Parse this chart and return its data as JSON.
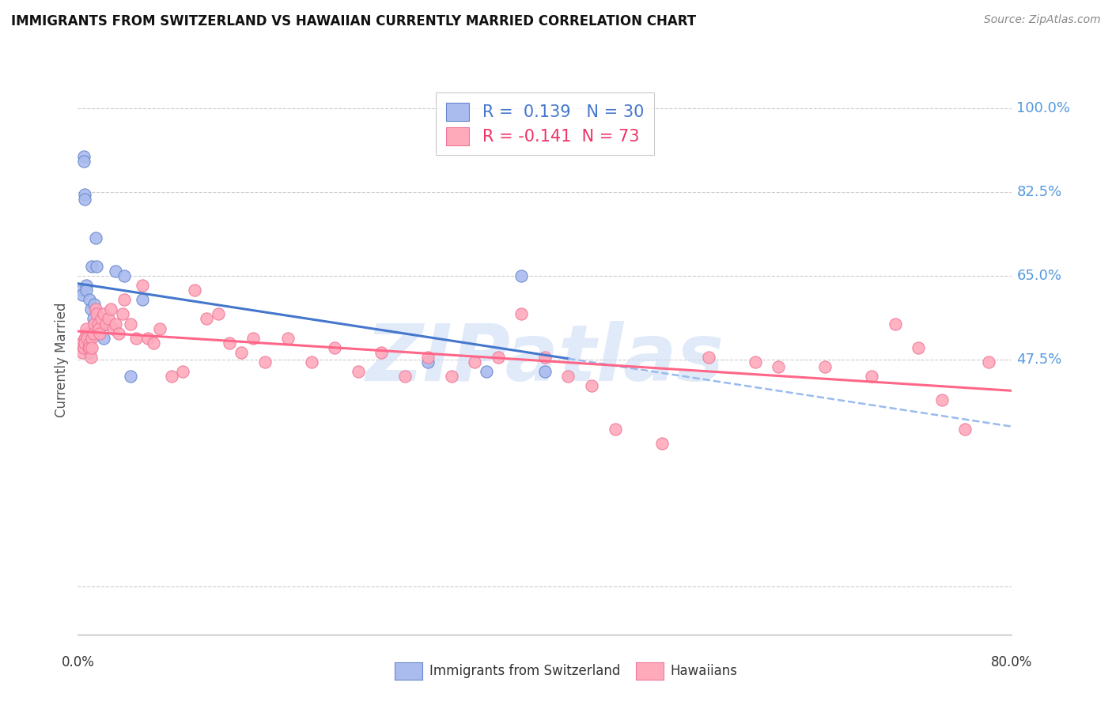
{
  "title": "IMMIGRANTS FROM SWITZERLAND VS HAWAIIAN CURRENTLY MARRIED CORRELATION CHART",
  "source": "Source: ZipAtlas.com",
  "ylabel": "Currently Married",
  "ymin": -0.1,
  "ymax": 1.05,
  "xmin": 0.0,
  "xmax": 0.8,
  "swiss_color": "#aabbee",
  "swiss_edge": "#6688cc",
  "hawaiian_color": "#ffaabb",
  "hawaiian_edge": "#ee7799",
  "trend_swiss_color": "#4477cc",
  "trend_swiss_dashed_color": "#99bbee",
  "trend_hawaiian_color": "#ff6688",
  "r_swiss": 0.139,
  "n_swiss": 30,
  "r_hawaiian": -0.141,
  "n_hawaiian": 73,
  "swiss_x": [
    0.003,
    0.004,
    0.005,
    0.005,
    0.006,
    0.006,
    0.007,
    0.007,
    0.008,
    0.009,
    0.01,
    0.01,
    0.011,
    0.012,
    0.013,
    0.014,
    0.015,
    0.016,
    0.018,
    0.02,
    0.022,
    0.025,
    0.032,
    0.04,
    0.045,
    0.055,
    0.3,
    0.35,
    0.38,
    0.4
  ],
  "swiss_y": [
    0.62,
    0.61,
    0.9,
    0.89,
    0.82,
    0.81,
    0.63,
    0.62,
    0.51,
    0.5,
    0.49,
    0.6,
    0.58,
    0.67,
    0.56,
    0.59,
    0.73,
    0.67,
    0.53,
    0.56,
    0.52,
    0.55,
    0.66,
    0.65,
    0.44,
    0.6,
    0.47,
    0.45,
    0.65,
    0.45
  ],
  "hawaiian_x": [
    0.002,
    0.003,
    0.004,
    0.005,
    0.006,
    0.006,
    0.007,
    0.007,
    0.008,
    0.009,
    0.01,
    0.01,
    0.011,
    0.012,
    0.012,
    0.013,
    0.014,
    0.015,
    0.016,
    0.017,
    0.018,
    0.019,
    0.02,
    0.022,
    0.024,
    0.026,
    0.028,
    0.03,
    0.032,
    0.035,
    0.038,
    0.04,
    0.045,
    0.05,
    0.055,
    0.06,
    0.065,
    0.07,
    0.08,
    0.09,
    0.1,
    0.11,
    0.12,
    0.13,
    0.14,
    0.15,
    0.16,
    0.18,
    0.2,
    0.22,
    0.24,
    0.26,
    0.28,
    0.3,
    0.32,
    0.34,
    0.36,
    0.38,
    0.4,
    0.42,
    0.44,
    0.46,
    0.5,
    0.54,
    0.58,
    0.6,
    0.64,
    0.68,
    0.7,
    0.72,
    0.74,
    0.76,
    0.78
  ],
  "hawaiian_y": [
    0.5,
    0.51,
    0.49,
    0.5,
    0.52,
    0.51,
    0.53,
    0.54,
    0.52,
    0.5,
    0.51,
    0.5,
    0.48,
    0.52,
    0.5,
    0.53,
    0.55,
    0.58,
    0.57,
    0.55,
    0.54,
    0.53,
    0.56,
    0.57,
    0.55,
    0.56,
    0.58,
    0.54,
    0.55,
    0.53,
    0.57,
    0.6,
    0.55,
    0.52,
    0.63,
    0.52,
    0.51,
    0.54,
    0.44,
    0.45,
    0.62,
    0.56,
    0.57,
    0.51,
    0.49,
    0.52,
    0.47,
    0.52,
    0.47,
    0.5,
    0.45,
    0.49,
    0.44,
    0.48,
    0.44,
    0.47,
    0.48,
    0.57,
    0.48,
    0.44,
    0.42,
    0.33,
    0.3,
    0.48,
    0.47,
    0.46,
    0.46,
    0.44,
    0.55,
    0.5,
    0.39,
    0.33,
    0.47
  ],
  "watermark": "ZIPatlas",
  "watermark_color": "#ccddf5",
  "grid_color": "#cccccc",
  "grid_style": "--",
  "ytick_positions": [
    0.0,
    0.475,
    0.65,
    0.825,
    1.0
  ],
  "ytick_labels": [
    "",
    "47.5%",
    "65.0%",
    "82.5%",
    "100.0%"
  ],
  "background_color": "#ffffff"
}
